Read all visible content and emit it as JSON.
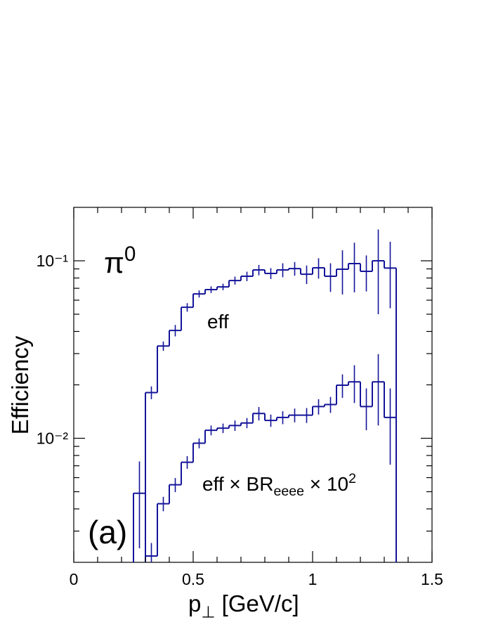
{
  "chart_data": {
    "type": "histogram",
    "y_label": "Efficiency",
    "x_label": {
      "text": "p",
      "sub": "⊥",
      "after": "   [GeV/c]"
    },
    "annotations": [
      {
        "text": "π",
        "sup": "0"
      },
      {
        "text": "eff"
      },
      {
        "text": "eff × BR",
        "sub": "eeee",
        "after": " × 10",
        "sup": "2"
      },
      {
        "text": "(a)"
      }
    ],
    "bins": [
      0.25,
      0.3,
      0.35,
      0.4,
      0.45,
      0.5,
      0.55,
      0.6,
      0.65,
      0.7,
      0.75,
      0.8,
      0.85,
      0.9,
      0.95,
      1.0,
      1.05,
      1.1,
      1.15,
      1.2,
      1.25,
      1.3,
      1.35
    ],
    "series": [
      {
        "color": "#14149a",
        "values": [
          null,
          0.0181,
          0.0331,
          0.0405,
          0.0547,
          0.0651,
          0.0688,
          0.0713,
          0.0774,
          0.0818,
          0.0888,
          0.0849,
          0.0888,
          0.0904,
          0.084,
          0.0913,
          0.0818,
          0.0896,
          0.0964,
          0.0872,
          0.1,
          0.091
        ],
        "errors": [
          null,
          0.0015,
          0.002,
          0.003,
          0.003,
          0.003,
          0.003,
          0.003,
          0.004,
          0.005,
          0.006,
          0.006,
          0.008,
          0.008,
          0.01,
          0.012,
          0.015,
          0.025,
          0.03,
          0.02,
          0.05,
          0.037
        ]
      },
      {
        "color": "#14149a",
        "values": [
          0.0049,
          0.00217,
          0.00428,
          0.00547,
          0.00733,
          0.00938,
          0.0111,
          0.0114,
          0.0118,
          0.0122,
          0.0138,
          0.0126,
          0.0131,
          0.0135,
          0.0135,
          0.0151,
          0.0155,
          0.0199,
          0.0208,
          0.0151,
          0.0208,
          0.0131
        ],
        "errors": [
          0.0025,
          0.0004,
          0.0004,
          0.0005,
          0.0006,
          0.0006,
          0.0007,
          0.0007,
          0.0008,
          0.0008,
          0.0012,
          0.001,
          0.0011,
          0.0012,
          0.0013,
          0.0015,
          0.0016,
          0.003,
          0.005,
          0.004,
          0.009,
          0.006
        ]
      }
    ],
    "xlim": [
      0,
      1.5
    ],
    "xticks": [
      0,
      0.5,
      1,
      1.5
    ],
    "xminorticks": [
      0.1,
      0.2,
      0.3,
      0.4,
      0.6,
      0.7,
      0.8,
      0.9,
      1.1,
      1.2,
      1.3,
      1.4
    ],
    "ylim": [
      0.002,
      0.2
    ],
    "ylog": true,
    "yticks": [
      {
        "value": 0.01,
        "label": "10⁻²"
      },
      {
        "value": 0.1,
        "label": "10⁻¹"
      }
    ],
    "yminorticks": [
      0.003,
      0.004,
      0.005,
      0.006,
      0.007,
      0.008,
      0.009,
      0.02,
      0.03,
      0.04,
      0.05,
      0.06,
      0.07,
      0.08,
      0.09
    ]
  }
}
